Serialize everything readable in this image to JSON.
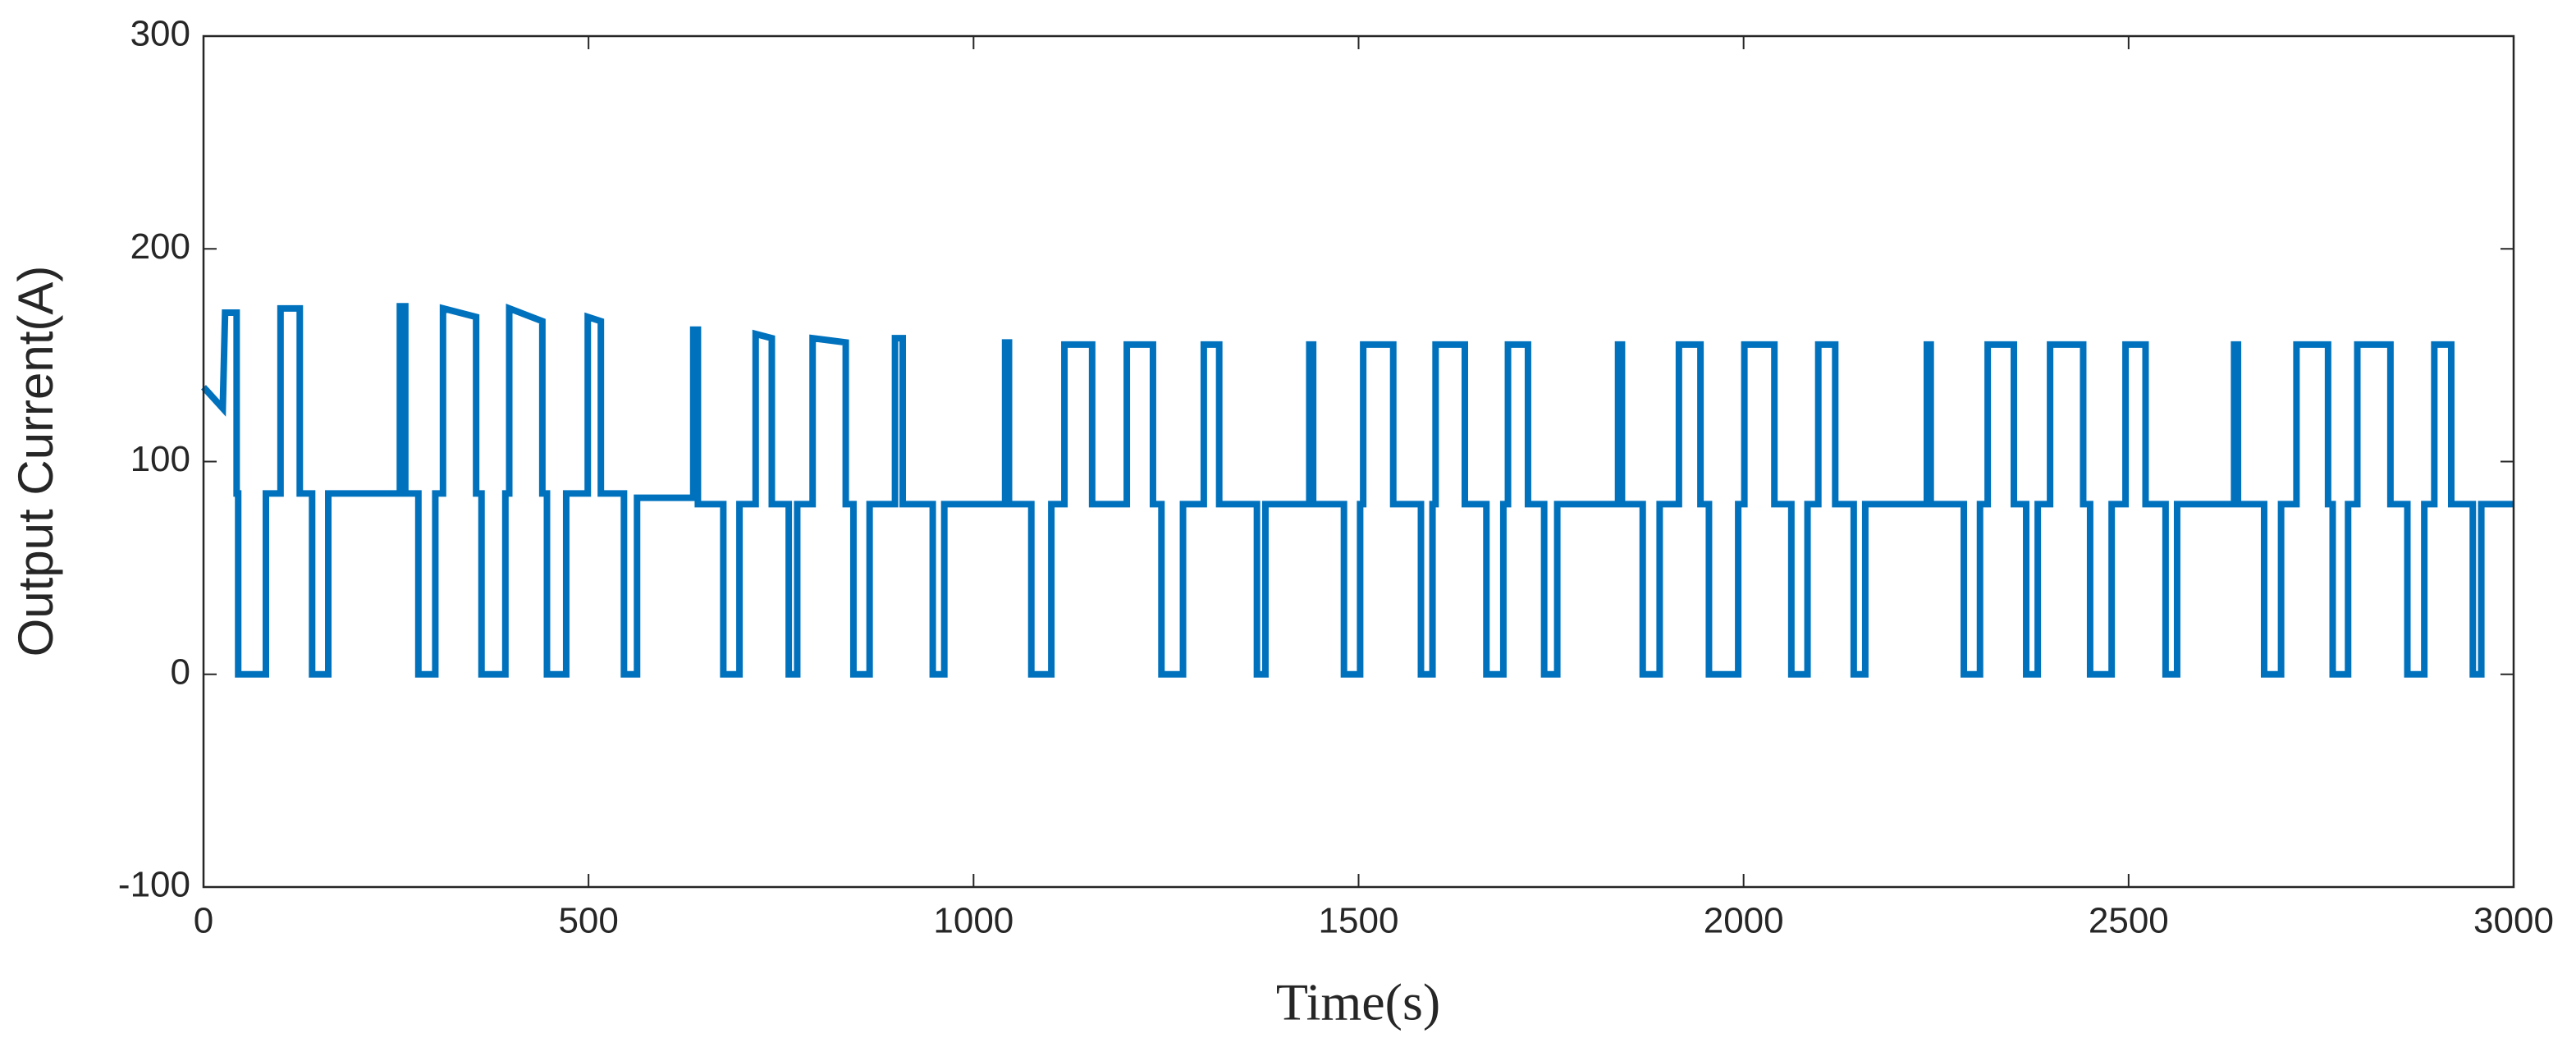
{
  "chart_data": {
    "type": "line",
    "xlabel": "Time(s)",
    "ylabel": "Output Current(A)",
    "xlim": [
      0,
      3000
    ],
    "xticks": [
      0,
      500,
      1000,
      1500,
      2000,
      2500,
      3000
    ],
    "ylim": [
      -100,
      300
    ],
    "yticks": [
      -100,
      0,
      100,
      200,
      300
    ],
    "grid": false,
    "x": [
      0,
      25,
      28,
      43,
      43,
      45,
      45,
      81,
      81,
      100,
      100,
      125,
      125,
      141,
      141,
      162,
      162,
      255,
      255,
      262,
      262,
      279,
      279,
      301,
      301,
      311,
      311,
      354,
      354,
      361,
      361,
      392,
      392,
      397,
      397,
      440,
      440,
      446,
      446,
      471,
      471,
      499,
      499,
      516,
      516,
      546,
      546,
      563,
      563,
      636,
      636,
      642,
      642,
      675,
      675,
      696,
      696,
      717,
      717,
      738,
      738,
      760,
      760,
      771,
      771,
      791,
      791,
      834,
      834,
      844,
      844,
      865,
      865,
      898,
      898,
      908,
      908,
      947,
      947,
      962,
      962,
      1041,
      1041,
      1046,
      1046,
      1075,
      1075,
      1101,
      1101,
      1118,
      1118,
      1154,
      1154,
      1199,
      1199,
      1233,
      1233,
      1244,
      1244,
      1272,
      1272,
      1299,
      1299,
      1319,
      1319,
      1368,
      1368,
      1379,
      1379,
      1436,
      1436,
      1441,
      1441,
      1481,
      1481,
      1502,
      1502,
      1506,
      1506,
      1545,
      1545,
      1581,
      1581,
      1596,
      1596,
      1600,
      1600,
      1638,
      1638,
      1666,
      1666,
      1688,
      1688,
      1694,
      1694,
      1720,
      1720,
      1741,
      1741,
      1758,
      1758,
      1837,
      1837,
      1842,
      1842,
      1869,
      1869,
      1891,
      1891,
      1916,
      1916,
      1944,
      1944,
      1955,
      1955,
      1993,
      1993,
      2001,
      2001,
      2040,
      2040,
      2062,
      2062,
      2083,
      2083,
      2097,
      2097,
      2119,
      2119,
      2143,
      2143,
      2158,
      2158,
      2238,
      2238,
      2243,
      2243,
      2286,
      2286,
      2307,
      2307,
      2317,
      2317,
      2351,
      2351,
      2367,
      2367,
      2382,
      2382,
      2398,
      2398,
      2441,
      2441,
      2450,
      2450,
      2478,
      2478,
      2496,
      2496,
      2522,
      2522,
      2548,
      2548,
      2563,
      2563,
      2637,
      2637,
      2642,
      2642,
      2676,
      2676,
      2698,
      2698,
      2718,
      2718,
      2759,
      2759,
      2765,
      2765,
      2785,
      2785,
      2797,
      2797,
      2840,
      2840,
      2862,
      2862,
      2884,
      2884,
      2897,
      2897,
      2919,
      2919,
      2947,
      2947,
      2958,
      2958,
      3000
    ],
    "series": [
      {
        "name": "Output Current",
        "color": "#0072bd",
        "values": [
          135,
          125,
          170,
          170,
          85,
          85,
          0,
          0,
          85,
          85,
          172,
          172,
          85,
          85,
          0,
          0,
          85,
          85,
          173,
          173,
          85,
          85,
          0,
          0,
          85,
          85,
          172,
          168,
          85,
          85,
          0,
          0,
          85,
          85,
          172,
          166,
          85,
          85,
          0,
          0,
          85,
          85,
          168,
          166,
          85,
          85,
          0,
          0,
          83,
          83,
          162,
          162,
          80,
          80,
          0,
          0,
          80,
          80,
          160,
          158,
          80,
          80,
          0,
          0,
          80,
          80,
          158,
          156,
          80,
          80,
          0,
          0,
          80,
          80,
          158,
          158,
          80,
          80,
          0,
          0,
          80,
          80,
          156,
          156,
          80,
          80,
          0,
          0,
          80,
          80,
          155,
          155,
          80,
          80,
          155,
          155,
          80,
          80,
          0,
          0,
          80,
          80,
          155,
          155,
          80,
          80,
          0,
          0,
          80,
          80,
          155,
          155,
          80,
          80,
          0,
          0,
          80,
          80,
          155,
          155,
          80,
          80,
          0,
          0,
          80,
          80,
          155,
          155,
          80,
          80,
          0,
          0,
          80,
          80,
          155,
          155,
          80,
          80,
          0,
          0,
          80,
          80,
          155,
          155,
          80,
          80,
          0,
          0,
          80,
          80,
          155,
          155,
          80,
          80,
          0,
          0,
          80,
          80,
          155,
          155,
          80,
          80,
          0,
          0,
          80,
          80,
          155,
          155,
          80,
          80,
          0,
          0,
          80,
          80,
          155,
          155,
          80,
          80,
          0,
          0,
          80,
          80,
          155,
          155,
          80,
          80,
          0,
          0,
          80,
          80,
          155,
          155,
          80,
          80,
          0,
          0,
          80,
          80,
          155,
          155,
          80,
          80,
          0,
          0,
          80,
          80,
          155,
          155,
          80,
          80,
          0,
          0,
          80,
          80,
          155,
          155,
          80,
          80,
          0,
          0,
          80,
          80,
          155,
          155,
          80,
          80,
          0,
          0,
          80,
          80,
          155,
          155,
          80,
          80,
          0,
          0,
          80,
          80
        ]
      }
    ]
  }
}
